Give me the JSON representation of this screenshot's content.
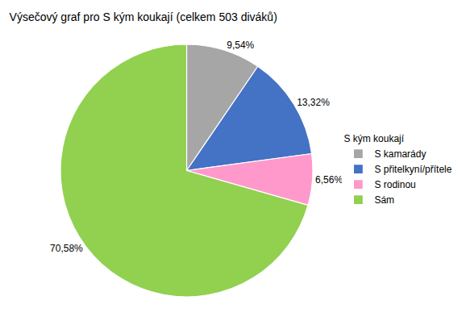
{
  "chart_data": {
    "type": "pie",
    "title": "Výsečový graf pro S kým koukají (celkem 503 diváků)",
    "categories": [
      "S kamarády",
      "S přitelkyní/přítele",
      "S rodinou",
      "Sám"
    ],
    "values": [
      9.54,
      13.32,
      6.56,
      70.58
    ],
    "value_labels": [
      "9,54%",
      "13,32%",
      "6,56%",
      "70,58%"
    ],
    "data_labels": true,
    "colors": [
      "#a6a6a6",
      "#4472c4",
      "#ff99cc",
      "#92d050"
    ],
    "legend_title": "S kým koukají",
    "legend": "right"
  }
}
